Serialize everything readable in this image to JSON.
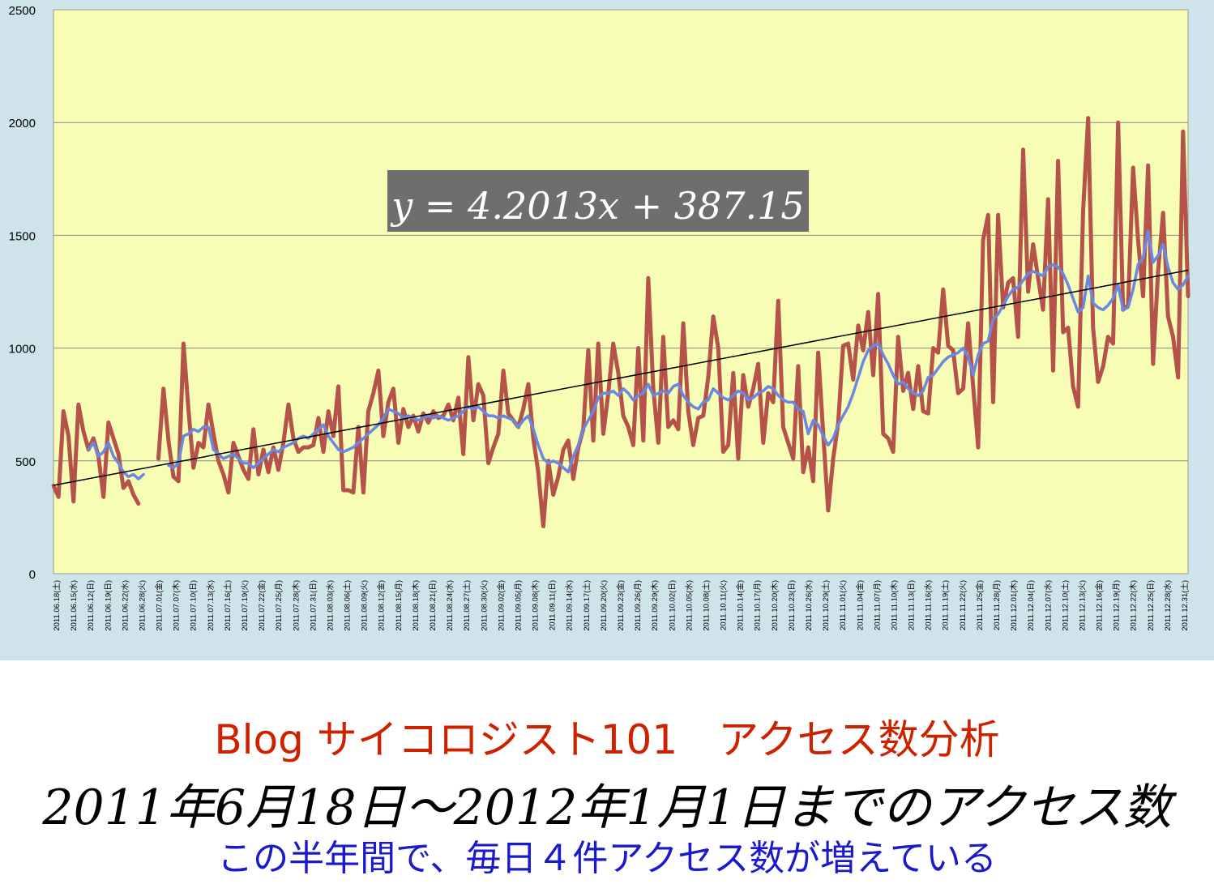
{
  "captions": {
    "title": "Blog サイコロジスト101　アクセス数分析",
    "period": "2011年6月18日～2012年1月1日までのアクセス数",
    "note": "この半年間で、毎日４件アクセス数が増えている"
  },
  "chart_data": {
    "type": "line",
    "title": "",
    "xlabel": "",
    "ylabel": "",
    "ylim": [
      0,
      2500
    ],
    "yticks": [
      0,
      500,
      1000,
      1500,
      2000,
      2500
    ],
    "grid": true,
    "x_tick_labels": [
      "2011.06.18(土)",
      "2011.06.15(水)",
      "2011.06.12(日)",
      "2011.06.19(日)",
      "2011.06.22(水)",
      "2011.06.28(火)",
      "2011.07.01(金)",
      "2011.07.07(木)",
      "2011.07.10(日)",
      "2011.07.13(水)",
      "2011.07.16(土)",
      "2011.07.19(火)",
      "2011.07.22(金)",
      "2011.07.25(月)",
      "2011.07.28(木)",
      "2011.07.31(日)",
      "2011.08.03(水)",
      "2011.08.06(土)",
      "2011.08.09(火)",
      "2011.08.12(金)",
      "2011.08.15(月)",
      "2011.08.18(木)",
      "2011.08.21(日)",
      "2011.08.24(水)",
      "2011.08.27(土)",
      "2011.08.30(火)",
      "2011.09.02(金)",
      "2011.09.05(月)",
      "2011.09.08(木)",
      "2011.09.11(日)",
      "2011.09.14(水)",
      "2011.09.17(土)",
      "2011.09.20(火)",
      "2011.09.23(金)",
      "2011.09.26(月)",
      "2011.09.29(木)",
      "2011.10.02(日)",
      "2011.10.05(水)",
      "2011.10.08(土)",
      "2011.10.11(火)",
      "2011.10.14(金)",
      "2011.10.17(月)",
      "2011.10.20(木)",
      "2011.10.23(日)",
      "2011.10.26(水)",
      "2011.10.29(土)",
      "2011.11.01(火)",
      "2011.11.04(金)",
      "2011.11.07(月)",
      "2011.11.10(木)",
      "2011.11.13(日)",
      "2011.11.16(水)",
      "2011.11.19(土)",
      "2011.11.22(火)",
      "2011.11.25(金)",
      "2011.11.28(月)",
      "2011.12.01(木)",
      "2011.12.04(日)",
      "2011.12.07(水)",
      "2011.12.10(土)",
      "2011.12.13(火)",
      "2011.12.16(金)",
      "2011.12.19(月)",
      "2011.12.22(木)",
      "2011.12.25(日)",
      "2011.12.28(水)",
      "2011.12.31(土)"
    ],
    "trendline": {
      "equation": "y = 4.2013x + 387.15",
      "slope": 4.2013,
      "intercept": 387.15,
      "color": "#000000"
    },
    "series": [
      {
        "color": "#b5524a",
        "values": [
          390,
          340,
          720,
          610,
          320,
          750,
          630,
          550,
          600,
          520,
          340,
          670,
          600,
          530,
          380,
          410,
          350,
          310,
          null,
          null,
          null,
          510,
          820,
          590,
          430,
          410,
          1020,
          730,
          470,
          580,
          560,
          750,
          620,
          500,
          440,
          360,
          580,
          520,
          460,
          420,
          640,
          440,
          550,
          450,
          560,
          460,
          580,
          750,
          600,
          540,
          560,
          560,
          570,
          690,
          540,
          720,
          610,
          830,
          370,
          370,
          360,
          650,
          360,
          720,
          800,
          900,
          610,
          760,
          820,
          580,
          730,
          650,
          700,
          630,
          710,
          670,
          720,
          690,
          700,
          750,
          680,
          780,
          530,
          960,
          680,
          840,
          790,
          490,
          560,
          620,
          900,
          710,
          680,
          650,
          730,
          840,
          600,
          450,
          210,
          500,
          350,
          430,
          550,
          590,
          420,
          560,
          640,
          990,
          590,
          1020,
          620,
          800,
          1020,
          890,
          700,
          650,
          570,
          1000,
          590,
          1310,
          820,
          580,
          1050,
          650,
          680,
          640,
          1110,
          720,
          570,
          690,
          700,
          870,
          1140,
          1000,
          540,
          570,
          890,
          510,
          880,
          740,
          820,
          930,
          580,
          800,
          760,
          1210,
          650,
          580,
          510,
          920,
          450,
          560,
          410,
          980,
          620,
          280,
          510,
          670,
          1010,
          1020,
          860,
          1100,
          990,
          1160,
          880,
          1240,
          620,
          600,
          540,
          1050,
          810,
          890,
          730,
          920,
          720,
          710,
          1000,
          980,
          1260,
          1010,
          990,
          800,
          820,
          1110,
          830,
          560,
          1480,
          1590,
          760,
          1590,
          1180,
          1290,
          1310,
          1050,
          1880,
          1250,
          1460,
          1310,
          1170,
          1660,
          900,
          1830,
          1070,
          1090,
          830,
          740,
          1610,
          2020,
          1090,
          850,
          920,
          1050,
          1020,
          2000,
          1170,
          1190,
          1800,
          1480,
          1230,
          1810,
          930,
          1340,
          1600,
          1140,
          1050,
          870,
          1960,
          1230
        ]
      },
      {
        "color": "#6a88e0",
        "values": [
          null,
          null,
          null,
          null,
          null,
          null,
          null,
          550,
          580,
          520,
          540,
          580,
          520,
          490,
          450,
          430,
          440,
          420,
          440,
          null,
          null,
          null,
          null,
          480,
          470,
          490,
          610,
          620,
          640,
          630,
          650,
          650,
          550,
          530,
          510,
          520,
          530,
          510,
          490,
          490,
          470,
          490,
          510,
          530,
          550,
          540,
          560,
          570,
          580,
          600,
          610,
          600,
          620,
          640,
          660,
          610,
          580,
          550,
          540,
          550,
          560,
          580,
          600,
          620,
          640,
          660,
          690,
          730,
          720,
          710,
          690,
          700,
          690,
          680,
          690,
          700,
          690,
          700,
          690,
          680,
          690,
          700,
          720,
          740,
          730,
          740,
          720,
          700,
          700,
          690,
          700,
          690,
          680,
          650,
          680,
          700,
          640,
          570,
          510,
          490,
          500,
          490,
          470,
          450,
          520,
          570,
          640,
          680,
          720,
          780,
          800,
          800,
          810,
          790,
          820,
          800,
          770,
          790,
          800,
          840,
          790,
          800,
          810,
          800,
          830,
          840,
          790,
          760,
          740,
          730,
          760,
          770,
          820,
          800,
          780,
          770,
          790,
          810,
          800,
          770,
          780,
          800,
          810,
          830,
          820,
          790,
          770,
          760,
          760,
          730,
          720,
          620,
          680,
          660,
          610,
          570,
          600,
          660,
          700,
          740,
          800,
          870,
          940,
          990,
          1010,
          1020,
          970,
          930,
          880,
          840,
          850,
          820,
          800,
          790,
          810,
          870,
          880,
          910,
          940,
          960,
          970,
          980,
          1000,
          960,
          880,
          970,
          1020,
          1030,
          1130,
          1150,
          1190,
          1230,
          1260,
          1270,
          1300,
          1330,
          1340,
          1330,
          1320,
          1360,
          1370,
          1360,
          1330,
          1280,
          1220,
          1160,
          1180,
          1320,
          1200,
          1180,
          1170,
          1190,
          1220,
          1280,
          1170,
          1180,
          1260,
          1370,
          1400,
          1520,
          1380,
          1410,
          1460,
          1360,
          1290,
          1260,
          1280,
          1320
        ]
      }
    ]
  }
}
